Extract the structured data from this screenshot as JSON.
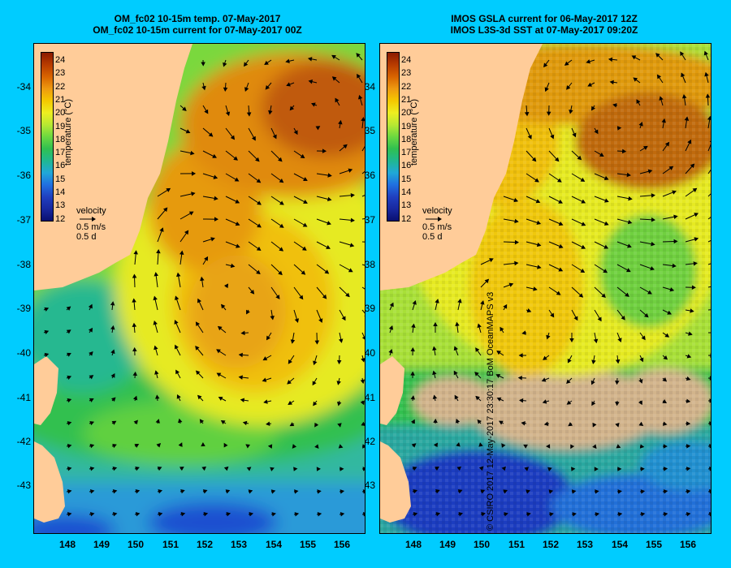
{
  "left_panel": {
    "title_line1": "OM_fc02 10-15m temp. 07-May-2017",
    "title_line2": "OM_fc02 10-15m current for 07-May-2017 00Z"
  },
  "right_panel": {
    "title_line1": "IMOS GSLA current for 06-May-2017 12Z",
    "title_line2": "IMOS L3S-3d SST at 07-May-2017 09:20Z"
  },
  "latitude_ticks": [
    "-34",
    "-35",
    "-36",
    "-37",
    "-38",
    "-39",
    "-40",
    "-41",
    "-42",
    "-43"
  ],
  "longitude_ticks": [
    "148",
    "149",
    "150",
    "151",
    "152",
    "153",
    "154",
    "155",
    "156"
  ],
  "colorbar": {
    "title": "temperature (°C)",
    "ticks": [
      "24",
      "23",
      "22",
      "21",
      "20",
      "19",
      "18",
      "17",
      "16",
      "15",
      "14",
      "13",
      "12"
    ],
    "colors": [
      "#8b1a00",
      "#b83c00",
      "#d86400",
      "#ee9a10",
      "#f5c800",
      "#eeee20",
      "#b8e832",
      "#6cd840",
      "#30c050",
      "#20b890",
      "#20a8d8",
      "#2070e0",
      "#2040c0",
      "#1828a0",
      "#0a1070"
    ]
  },
  "velocity_legend": {
    "label": "velocity",
    "scale_speed": "0.5 m/s",
    "scale_time": "0.5 d"
  },
  "credit": "© CSIRO 2017   12-May-2017 23:30:17 BoM OceanMAPS v3",
  "colors": {
    "background": "#00ccff",
    "land": "#ffcc99",
    "no_data": "#d2b48c"
  }
}
